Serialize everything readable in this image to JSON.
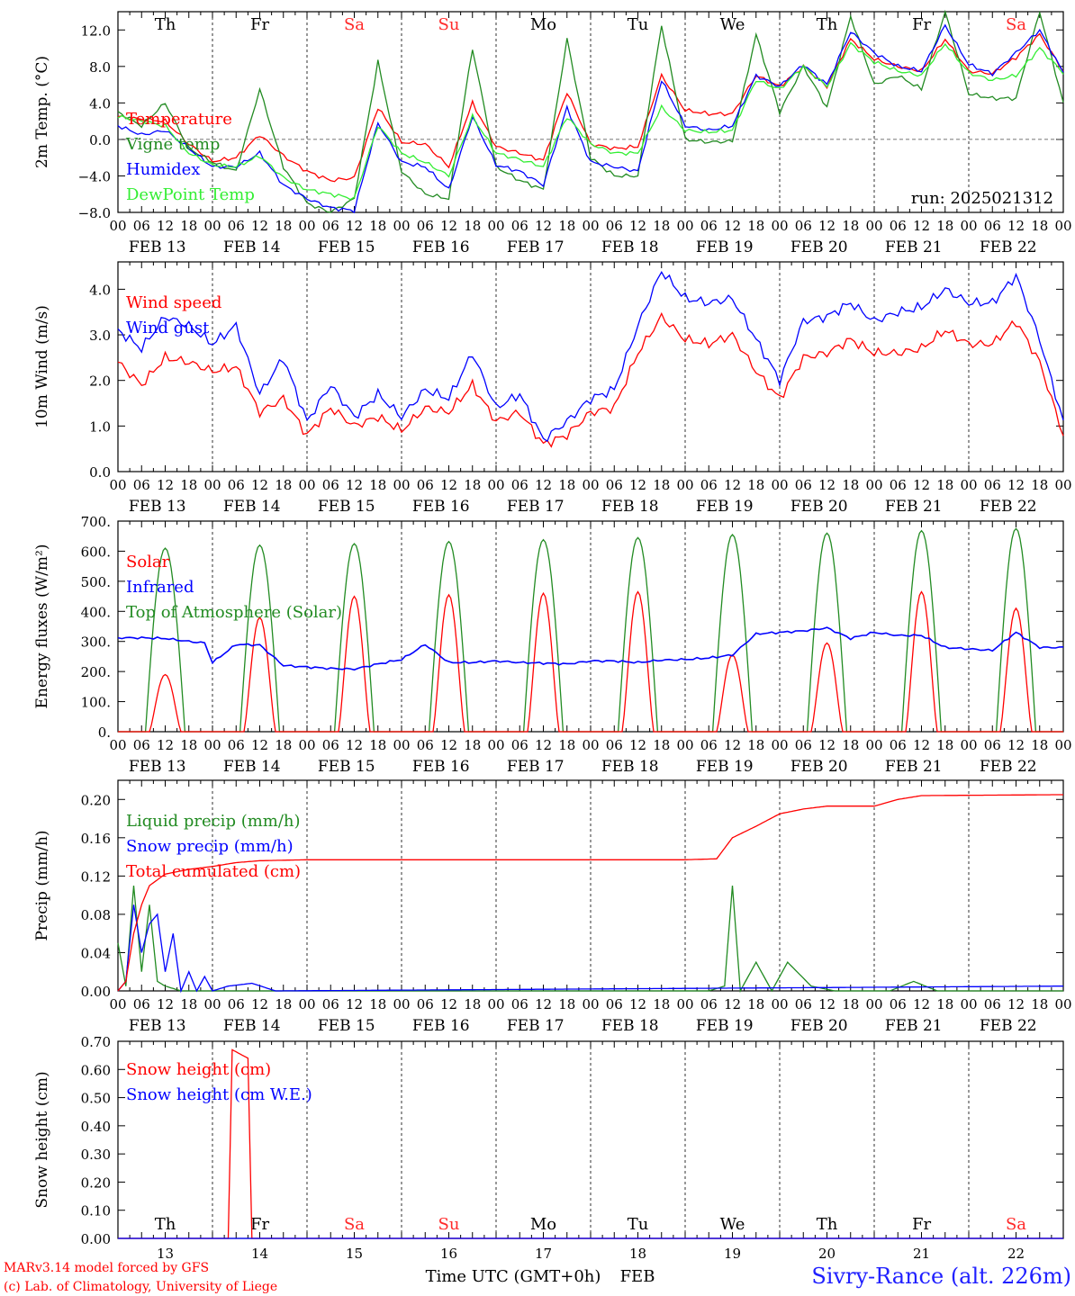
{
  "colors": {
    "red": "#ff0000",
    "darkgreen": "#228b22",
    "blue": "#0000ff",
    "lightgreen": "#33ee33",
    "weekend": "#ff2a2a",
    "weekday": "#000000"
  },
  "weekdays": [
    "Th",
    "Fr",
    "Sa",
    "Su",
    "Mo",
    "Tu",
    "We",
    "Th",
    "Fr",
    "Sa"
  ],
  "weekend_flags": [
    false,
    false,
    true,
    true,
    false,
    false,
    false,
    false,
    false,
    true
  ],
  "hour_labels": [
    "00",
    "06",
    "12",
    "18"
  ],
  "hour_end_label": "00",
  "date_labels": [
    "FEB 13",
    "FEB 14",
    "FEB 15",
    "FEB 16",
    "FEB 17",
    "FEB 18",
    "FEB 19",
    "FEB 20",
    "FEB 21",
    "FEB 22"
  ],
  "day_numbers": [
    "13",
    "14",
    "15",
    "16",
    "17",
    "18",
    "19",
    "20",
    "21",
    "22"
  ],
  "run_label": "run: 2025021312",
  "footer": {
    "model": "MARv3.14 model forced by GFS",
    "copyright": "(c) Lab. of Climatology, University of Liege",
    "x_title": "Time UTC (GMT+0h)",
    "x_unit": "FEB",
    "station": "Sivry-Rance (alt. 226m)"
  },
  "chart_data": [
    {
      "type": "line",
      "id": "temp",
      "ylabel": "2m Temp. (°C)",
      "ylim": [
        -8,
        14
      ],
      "yticks": [
        -8,
        -4,
        0,
        4,
        8,
        12
      ],
      "ytick_labels": [
        "−8.0",
        "−4.0",
        "0.0",
        "4.0",
        "8.0",
        "12.0"
      ],
      "zero_line": true,
      "x_unit": "hours since FEB 13 00 UTC",
      "series": [
        {
          "name": "Temperature",
          "color": "#ff0000",
          "x": [
            0,
            6,
            12,
            18,
            24,
            30,
            36,
            42,
            48,
            54,
            60,
            66,
            72,
            78,
            84,
            90,
            96,
            102,
            108,
            114,
            120,
            126,
            132,
            138,
            144,
            150,
            156,
            162,
            168,
            174,
            180,
            186,
            192,
            198,
            204,
            210,
            216,
            222,
            228,
            234,
            240
          ],
          "y": [
            2.5,
            2.2,
            2.0,
            -0.5,
            -2.4,
            -2.0,
            0.5,
            -1.8,
            -3.5,
            -4.5,
            -4.2,
            3.5,
            -0.3,
            -0.5,
            -3.0,
            4.0,
            -0.8,
            -1.5,
            -2.3,
            5.2,
            -0.5,
            -1.0,
            -0.8,
            7.0,
            3.2,
            2.8,
            2.8,
            7.0,
            5.8,
            8.0,
            5.8,
            11.0,
            8.8,
            8.0,
            7.5,
            11.0,
            7.5,
            7.2,
            9.0,
            11.5,
            7.5
          ]
        },
        {
          "name": "Vigne temp",
          "color": "#228b22",
          "x": [
            0,
            6,
            12,
            18,
            24,
            30,
            36,
            42,
            48,
            54,
            60,
            66,
            72,
            78,
            84,
            90,
            96,
            102,
            108,
            114,
            120,
            126,
            132,
            138,
            144,
            150,
            156,
            162,
            168,
            174,
            180,
            186,
            192,
            198,
            204,
            210,
            216,
            222,
            228,
            234,
            240
          ],
          "y": [
            3.0,
            1.5,
            4.0,
            -1.0,
            -2.5,
            -3.5,
            5.5,
            -3.0,
            -7.0,
            -8.0,
            -6.5,
            8.5,
            -3.5,
            -6.0,
            -6.5,
            10.0,
            -3.0,
            -4.5,
            -5.5,
            11.0,
            -2.0,
            -4.0,
            -4.0,
            12.5,
            0.0,
            -0.3,
            -0.2,
            11.5,
            3.0,
            8.0,
            3.5,
            13.5,
            6.0,
            7.0,
            5.5,
            14.0,
            5.0,
            4.5,
            4.5,
            14.0,
            4.0
          ]
        },
        {
          "name": "Humidex",
          "color": "#0000ff",
          "x": [
            0,
            6,
            12,
            18,
            24,
            30,
            36,
            42,
            48,
            54,
            60,
            66,
            72,
            78,
            84,
            90,
            96,
            102,
            108,
            114,
            120,
            126,
            132,
            138,
            144,
            150,
            156,
            162,
            168,
            174,
            180,
            186,
            192,
            198,
            204,
            210,
            216,
            222,
            228,
            234,
            240
          ],
          "y": [
            1.5,
            0.5,
            1.0,
            -1.0,
            -3.0,
            -3.0,
            -1.5,
            -5.0,
            -6.5,
            -7.5,
            -7.8,
            1.8,
            -2.5,
            -3.0,
            -5.5,
            2.5,
            -2.8,
            -3.5,
            -5.0,
            3.5,
            -2.5,
            -3.0,
            -3.5,
            6.5,
            1.5,
            1.0,
            1.5,
            7.0,
            5.8,
            8.2,
            6.0,
            11.8,
            9.5,
            8.0,
            7.5,
            12.5,
            8.2,
            7.2,
            9.5,
            12.0,
            7.3
          ]
        },
        {
          "name": "DewPoint Temp",
          "color": "#33ee33",
          "x": [
            0,
            6,
            12,
            18,
            24,
            30,
            36,
            42,
            48,
            54,
            60,
            66,
            72,
            78,
            84,
            90,
            96,
            102,
            108,
            114,
            120,
            126,
            132,
            138,
            144,
            150,
            156,
            162,
            168,
            174,
            180,
            186,
            192,
            198,
            204,
            210,
            216,
            222,
            228,
            234,
            240
          ],
          "y": [
            2.5,
            2.0,
            1.5,
            -1.5,
            -2.8,
            -3.0,
            -1.8,
            -4.2,
            -5.5,
            -6.0,
            -6.5,
            1.5,
            -1.5,
            -2.5,
            -4.0,
            2.5,
            -1.5,
            -2.2,
            -3.0,
            2.5,
            -0.5,
            -1.5,
            -1.5,
            3.5,
            1.0,
            0.8,
            1.0,
            6.5,
            5.5,
            8.0,
            5.8,
            10.5,
            8.5,
            7.5,
            7.0,
            10.5,
            7.3,
            6.5,
            7.0,
            10.0,
            7.3
          ]
        }
      ]
    },
    {
      "type": "line",
      "id": "wind",
      "ylabel": "10m Wind (m/s)",
      "ylim": [
        0,
        4.6
      ],
      "yticks": [
        0,
        1,
        2,
        3,
        4
      ],
      "ytick_labels": [
        "0.0",
        "1.0",
        "2.0",
        "3.0",
        "4.0"
      ],
      "x_unit": "hours since FEB 13 00 UTC",
      "series": [
        {
          "name": "Wind speed",
          "color": "#ff0000",
          "x": [
            0,
            6,
            12,
            18,
            24,
            30,
            36,
            42,
            48,
            54,
            60,
            66,
            72,
            78,
            84,
            90,
            96,
            102,
            108,
            114,
            120,
            126,
            132,
            138,
            144,
            150,
            156,
            162,
            168,
            174,
            180,
            186,
            192,
            198,
            204,
            210,
            216,
            222,
            228,
            234,
            240
          ],
          "y": [
            2.4,
            1.9,
            2.5,
            2.4,
            2.2,
            2.3,
            1.3,
            1.6,
            0.8,
            1.4,
            1.0,
            1.2,
            0.9,
            1.4,
            1.3,
            1.9,
            1.1,
            1.3,
            0.6,
            0.8,
            1.3,
            1.4,
            2.6,
            3.4,
            2.9,
            2.8,
            3.0,
            2.2,
            1.6,
            2.5,
            2.6,
            2.9,
            2.6,
            2.6,
            2.7,
            3.1,
            2.8,
            2.8,
            3.3,
            2.4,
            0.8
          ]
        },
        {
          "name": "Wind gust",
          "color": "#0000ff",
          "x": [
            0,
            6,
            12,
            18,
            24,
            30,
            36,
            42,
            48,
            54,
            60,
            66,
            72,
            78,
            84,
            90,
            96,
            102,
            108,
            114,
            120,
            126,
            132,
            138,
            144,
            150,
            156,
            162,
            168,
            174,
            180,
            186,
            192,
            198,
            204,
            210,
            216,
            222,
            228,
            234,
            240
          ],
          "y": [
            3.1,
            2.7,
            3.4,
            3.2,
            2.8,
            3.2,
            1.7,
            2.5,
            1.1,
            1.9,
            1.2,
            1.7,
            1.2,
            1.8,
            1.6,
            2.6,
            1.4,
            1.7,
            0.7,
            1.1,
            1.6,
            1.8,
            3.2,
            4.4,
            3.8,
            3.7,
            3.8,
            2.9,
            2.0,
            3.3,
            3.4,
            3.7,
            3.3,
            3.5,
            3.6,
            4.0,
            3.7,
            3.7,
            4.3,
            2.9,
            1.1
          ]
        }
      ]
    },
    {
      "type": "line",
      "id": "flux",
      "ylabel": "Energy fluxes (W/m²)",
      "ylim": [
        0,
        700
      ],
      "yticks": [
        0,
        100,
        200,
        300,
        400,
        500,
        600,
        700
      ],
      "ytick_labels": [
        "0.",
        "100.",
        "200.",
        "300.",
        "400.",
        "500.",
        "600.",
        "700."
      ],
      "peak_solar": [
        190,
        380,
        450,
        455,
        460,
        465,
        255,
        295,
        465,
        410
      ],
      "peak_toa": [
        610,
        620,
        625,
        632,
        638,
        645,
        655,
        660,
        668,
        675
      ],
      "x_unit": "hours since FEB 13 00 UTC",
      "series": [
        {
          "name": "Solar",
          "color": "#ff0000"
        },
        {
          "name": "Infrared",
          "color": "#0000ff",
          "x": [
            0,
            6,
            12,
            18,
            22,
            24,
            30,
            36,
            42,
            48,
            54,
            60,
            66,
            72,
            78,
            84,
            90,
            96,
            102,
            108,
            114,
            120,
            126,
            132,
            138,
            144,
            150,
            156,
            162,
            168,
            174,
            180,
            186,
            192,
            198,
            204,
            210,
            216,
            222,
            228,
            234,
            240
          ],
          "y": [
            312,
            312,
            310,
            300,
            295,
            230,
            290,
            288,
            220,
            215,
            210,
            208,
            225,
            240,
            290,
            230,
            230,
            235,
            230,
            228,
            225,
            235,
            235,
            230,
            238,
            240,
            245,
            255,
            325,
            330,
            335,
            345,
            310,
            330,
            320,
            320,
            280,
            275,
            270,
            330,
            280,
            280
          ]
        },
        {
          "name": "Top of Atmosphere (Solar)",
          "color": "#228b22"
        }
      ]
    },
    {
      "type": "line",
      "id": "precip",
      "ylabel": "Precip (mm/h)",
      "ylim": [
        0,
        0.22
      ],
      "yticks": [
        0,
        0.04,
        0.08,
        0.12,
        0.16,
        0.2
      ],
      "ytick_labels": [
        "0.00",
        "0.04",
        "0.08",
        "0.12",
        "0.16",
        "0.20"
      ],
      "x_unit": "hours since FEB 13 00 UTC",
      "series": [
        {
          "name": "Liquid precip (mm/h)",
          "color": "#228b22",
          "x": [
            0,
            2,
            4,
            6,
            8,
            10,
            12,
            16,
            20,
            24,
            150,
            154,
            156,
            158,
            162,
            166,
            170,
            176,
            182,
            196,
            202,
            208,
            240
          ],
          "y": [
            0.05,
            0.005,
            0.11,
            0.02,
            0.09,
            0.01,
            0.005,
            0.0,
            0.0,
            0.0,
            0.0,
            0.005,
            0.11,
            0.0,
            0.03,
            0.0,
            0.03,
            0.005,
            0.0,
            0.0,
            0.01,
            0.0,
            0.0
          ]
        },
        {
          "name": "Snow precip (mm/h)",
          "color": "#0000ff",
          "x": [
            0,
            2,
            4,
            6,
            8,
            10,
            12,
            14,
            16,
            18,
            20,
            22,
            24,
            28,
            34,
            40,
            240
          ],
          "y": [
            0.0,
            0.01,
            0.09,
            0.04,
            0.07,
            0.08,
            0.02,
            0.06,
            0.0,
            0.02,
            0.0,
            0.015,
            0.0,
            0.005,
            0.008,
            0.0,
            0.005
          ]
        },
        {
          "name": "Total cumulated (cm)",
          "color": "#ff0000",
          "x": [
            0,
            2,
            4,
            6,
            8,
            12,
            18,
            24,
            30,
            36,
            48,
            72,
            96,
            120,
            144,
            152,
            156,
            162,
            168,
            174,
            180,
            192,
            198,
            204,
            240
          ],
          "y": [
            0.0,
            0.01,
            0.06,
            0.09,
            0.11,
            0.122,
            0.127,
            0.13,
            0.134,
            0.136,
            0.137,
            0.137,
            0.137,
            0.137,
            0.137,
            0.138,
            0.16,
            0.172,
            0.185,
            0.19,
            0.193,
            0.193,
            0.2,
            0.204,
            0.205
          ]
        }
      ]
    },
    {
      "type": "line",
      "id": "snow",
      "ylabel": "Snow height (cm)",
      "ylim": [
        0,
        0.7
      ],
      "yticks": [
        0,
        0.1,
        0.2,
        0.3,
        0.4,
        0.5,
        0.6,
        0.7
      ],
      "ytick_labels": [
        "0.00",
        "0.10",
        "0.20",
        "0.30",
        "0.40",
        "0.50",
        "0.60",
        "0.70"
      ],
      "x_unit": "hours since FEB 13 00 UTC",
      "series": [
        {
          "name": "Snow height (cm)",
          "color": "#ff0000",
          "x": [
            0,
            28,
            29,
            33,
            34,
            240
          ],
          "y": [
            0,
            0,
            0.67,
            0.64,
            0,
            0
          ]
        },
        {
          "name": "Snow height (cm W.E.)",
          "color": "#0000ff",
          "x": [
            0,
            240
          ],
          "y": [
            0,
            0
          ]
        }
      ]
    }
  ]
}
